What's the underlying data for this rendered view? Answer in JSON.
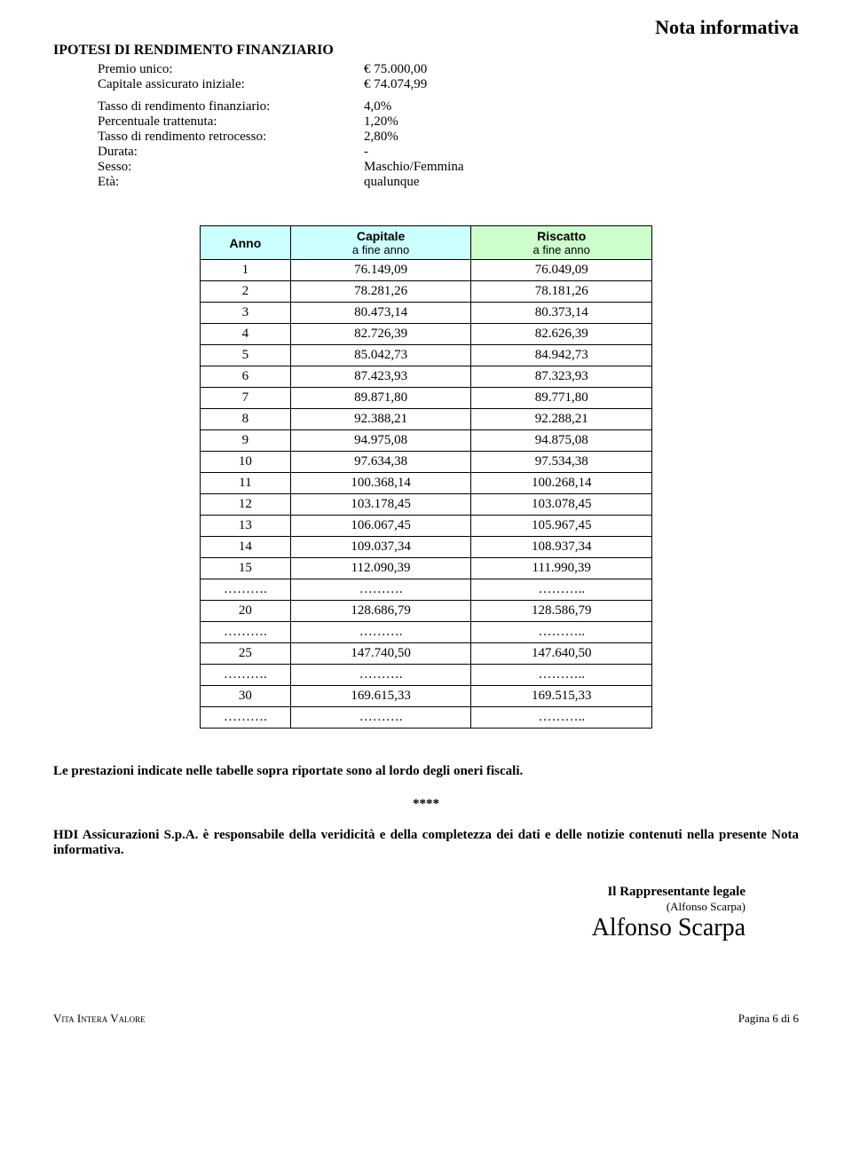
{
  "header_note": "Nota informativa",
  "section_title": "IPOTESI DI RENDIMENTO FINANZIARIO",
  "params": {
    "premio_label": "Premio unico:",
    "premio_value": "€ 75.000,00",
    "cap_label": "Capitale assicurato iniziale:",
    "cap_value": "€ 74.074,99",
    "tasso_fin_label": "Tasso di rendimento finanziario:",
    "tasso_fin_value": "4,0%",
    "perc_label": "Percentuale trattenuta:",
    "perc_value": "1,20%",
    "tasso_retro_label": "Tasso di rendimento retrocesso:",
    "tasso_retro_value": "2,80%",
    "durata_label": "Durata:",
    "durata_value": "-",
    "sesso_label": "Sesso:",
    "sesso_value": "Maschio/Femmina",
    "eta_label": "Età:",
    "eta_value": "qualunque"
  },
  "table": {
    "header_bg_colors": [
      "#ccffff",
      "#ccffff",
      "#ccffcc"
    ],
    "col_anno": "Anno",
    "col_cap": "Capitale",
    "col_cap_sub": "a fine anno",
    "col_risc": "Riscatto",
    "col_risc_sub": "a fine anno",
    "rows": [
      {
        "a": "1",
        "c": "76.149,09",
        "r": "76.049,09"
      },
      {
        "a": "2",
        "c": "78.281,26",
        "r": "78.181,26"
      },
      {
        "a": "3",
        "c": "80.473,14",
        "r": "80.373,14"
      },
      {
        "a": "4",
        "c": "82.726,39",
        "r": "82.626,39"
      },
      {
        "a": "5",
        "c": "85.042,73",
        "r": "84.942,73"
      },
      {
        "a": "6",
        "c": "87.423,93",
        "r": "87.323,93"
      },
      {
        "a": "7",
        "c": "89.871,80",
        "r": "89.771,80"
      },
      {
        "a": "8",
        "c": "92.388,21",
        "r": "92.288,21"
      },
      {
        "a": "9",
        "c": "94.975,08",
        "r": "94.875,08"
      },
      {
        "a": "10",
        "c": "97.634,38",
        "r": "97.534,38"
      },
      {
        "a": "11",
        "c": "100.368,14",
        "r": "100.268,14"
      },
      {
        "a": "12",
        "c": "103.178,45",
        "r": "103.078,45"
      },
      {
        "a": "13",
        "c": "106.067,45",
        "r": "105.967,45"
      },
      {
        "a": "14",
        "c": "109.037,34",
        "r": "108.937,34"
      },
      {
        "a": "15",
        "c": "112.090,39",
        "r": "111.990,39"
      },
      {
        "a": "……….",
        "c": "……….",
        "r": "……….."
      },
      {
        "a": "20",
        "c": "128.686,79",
        "r": "128.586,79"
      },
      {
        "a": "……….",
        "c": "……….",
        "r": "……….."
      },
      {
        "a": "25",
        "c": "147.740,50",
        "r": "147.640,50"
      },
      {
        "a": "……….",
        "c": "……….",
        "r": "……….."
      },
      {
        "a": "30",
        "c": "169.615,33",
        "r": "169.515,33"
      },
      {
        "a": "……….",
        "c": "……….",
        "r": "……….."
      }
    ]
  },
  "note_text": "Le prestazioni indicate nelle tabelle sopra riportate sono al lordo degli oneri fiscali.",
  "stars": "****",
  "responsibility": "HDI Assicurazioni S.p.A. è responsabile della veridicità e della completezza dei dati e delle notizie contenuti nella presente Nota informativa.",
  "sign": {
    "title": "Il Rappresentante legale",
    "name": "(Alfonso Scarpa)",
    "signature": "Alfonso Scarpa"
  },
  "footer": {
    "left": "Vita Intera Valore",
    "right": "Pagina 6 di 6"
  }
}
